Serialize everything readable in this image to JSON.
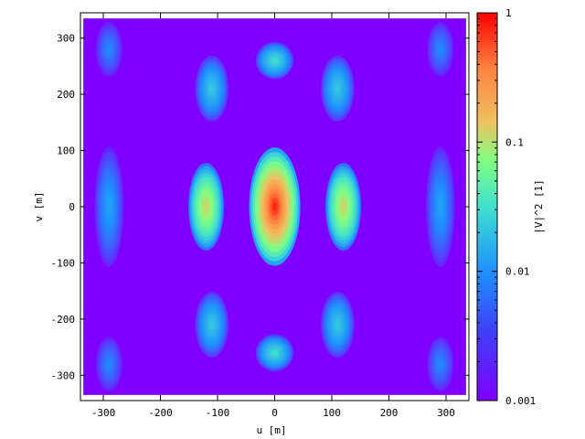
{
  "chart_data": {
    "type": "heatmap",
    "title": "",
    "xlabel": "u [m]",
    "ylabel": "v [m]",
    "xlim": [
      -340,
      340
    ],
    "ylim": [
      -345,
      345
    ],
    "x_ticks": [
      -300,
      -200,
      -100,
      0,
      100,
      200,
      300
    ],
    "y_ticks": [
      -300,
      -200,
      -100,
      0,
      100,
      200,
      300
    ],
    "data_extent": {
      "u": [
        -335,
        335
      ],
      "v": [
        -335,
        335
      ]
    },
    "colorbar": {
      "label": "|V|^2 [1]",
      "scale": "log",
      "range": [
        0.001,
        1
      ],
      "ticks": [
        {
          "value": 0.001,
          "label": "0.001"
        },
        {
          "value": 0.01,
          "label": "0.01"
        },
        {
          "value": 0.1,
          "label": "0.1"
        },
        {
          "value": 1,
          "label": "1"
        }
      ],
      "colormap": [
        "#7f00ff",
        "#1e90ff",
        "#40e0d0",
        "#80ff80",
        "#f0c060",
        "#ff8040",
        "#ff0000"
      ]
    },
    "background_color": "#7f00ff",
    "grid": false,
    "legend": "none",
    "lobes": [
      {
        "u": 0,
        "v": 0,
        "value": 0.9
      },
      {
        "u": -120,
        "v": 0,
        "value": 0.08
      },
      {
        "u": 120,
        "v": 0,
        "value": 0.08
      },
      {
        "u": 0,
        "v": 260,
        "value": 0.01
      },
      {
        "u": 0,
        "v": -260,
        "value": 0.01
      },
      {
        "u": -110,
        "v": 210,
        "value": 0.007
      },
      {
        "u": 110,
        "v": 210,
        "value": 0.007
      },
      {
        "u": -110,
        "v": -210,
        "value": 0.007
      },
      {
        "u": 110,
        "v": -210,
        "value": 0.007
      },
      {
        "u": -290,
        "v": 0,
        "value": 0.004
      },
      {
        "u": 290,
        "v": 0,
        "value": 0.004
      },
      {
        "u": -290,
        "v": 280,
        "value": 0.003
      },
      {
        "u": 290,
        "v": 280,
        "value": 0.003
      },
      {
        "u": -290,
        "v": -280,
        "value": 0.003
      },
      {
        "u": 290,
        "v": -280,
        "value": 0.003
      }
    ]
  }
}
